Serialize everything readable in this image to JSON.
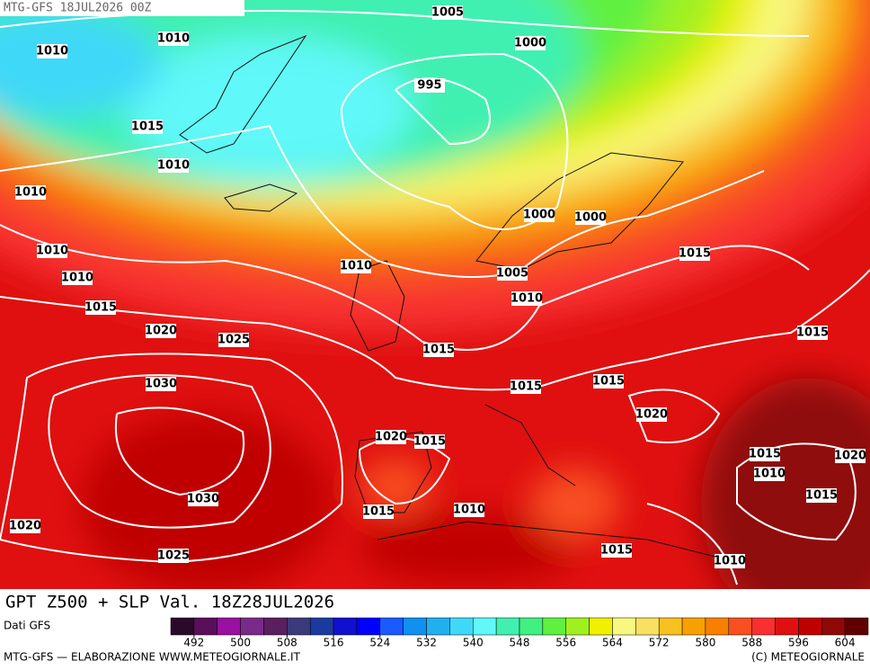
{
  "header": "MTG-GFS 18JUL2026 00Z",
  "title": "GPT Z500 + SLP Val. 18Z28JUL2026",
  "source": "Dati GFS",
  "isobar_labels": [
    1005,
    1010,
    1010,
    1000,
    995,
    1015,
    1010,
    1010,
    1000,
    1000,
    1010,
    1010,
    1005,
    1010,
    1010,
    1015,
    1015,
    1020,
    1025,
    1015,
    1015,
    1030,
    1015,
    1015,
    1020,
    1020,
    1015,
    1015,
    1020,
    1010,
    1015,
    1030,
    1015,
    1010,
    1020,
    1025,
    1015,
    1010
  ],
  "colorbar": {
    "ticks": [
      492,
      500,
      508,
      516,
      524,
      532,
      540,
      548,
      556,
      564,
      572,
      580,
      588,
      596,
      604
    ],
    "colors": [
      "#2a0a2a",
      "#5a0f5a",
      "#9a10a0",
      "#7a2a8a",
      "#5a1f5f",
      "#3b3b7b",
      "#1a3aa0",
      "#1010d0",
      "#0000ff",
      "#1a5aff",
      "#1090f0",
      "#20b0f0",
      "#40d8f8",
      "#60f8f8",
      "#40f0b0",
      "#40f080",
      "#60f040",
      "#a0f020",
      "#f0f000",
      "#f8f880",
      "#f8e060",
      "#f8c020",
      "#f8a000",
      "#f88000",
      "#f85020",
      "#f83030",
      "#e01010",
      "#c00000",
      "#900808",
      "#600000"
    ]
  },
  "footer": {
    "left": "MTG-GFS — ELABORAZIONE WWW.METEOGIORNALE.IT",
    "right": "(C) METEOGIORNALE"
  }
}
